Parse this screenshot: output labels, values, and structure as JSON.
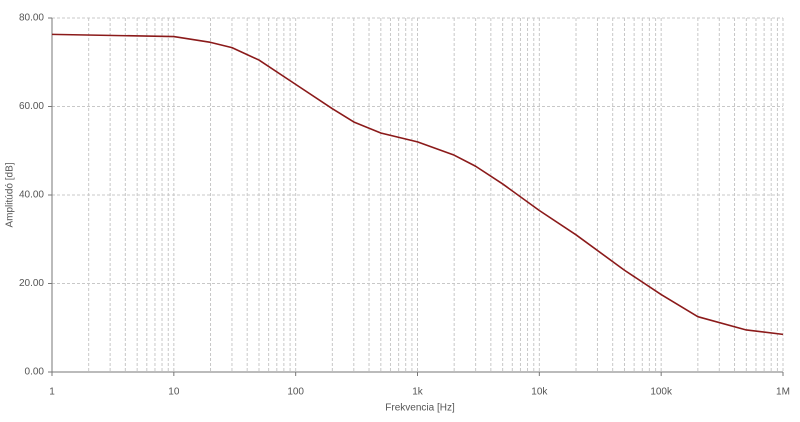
{
  "chart_data": {
    "type": "line",
    "x_label": "Frekvencia [Hz]",
    "y_label": "Amplitúdó [dB]",
    "xscale": "log",
    "grid": true,
    "color": "#8b1a1a",
    "x": [
      1,
      10,
      20,
      30,
      50,
      100,
      200,
      300,
      500,
      1000,
      2000,
      3000,
      5000,
      10000,
      20000,
      50000,
      100000,
      200000,
      500000,
      1000000
    ],
    "values": [
      76.3,
      75.8,
      74.5,
      73.3,
      70.5,
      65,
      59.5,
      56.5,
      54,
      52,
      49,
      46.5,
      42.5,
      36.5,
      31,
      23,
      17.5,
      12.5,
      9.5,
      8.5
    ],
    "xlim": [
      1,
      1000000
    ],
    "xticks": [
      1,
      10,
      100,
      {
        "value": 1000,
        "label": "1k"
      },
      {
        "value": 10000,
        "label": "10k"
      },
      {
        "value": 100000,
        "label": "100k"
      },
      {
        "value": 1000000,
        "label": "1M"
      }
    ],
    "ylim": [
      0,
      80
    ],
    "yticks": [
      {
        "value": 0,
        "label": "0.00"
      },
      {
        "value": 20,
        "label": "20.00"
      },
      {
        "value": 40,
        "label": "40.00"
      },
      {
        "value": 60,
        "label": "60.00"
      },
      {
        "value": 80,
        "label": "80.00"
      }
    ]
  }
}
